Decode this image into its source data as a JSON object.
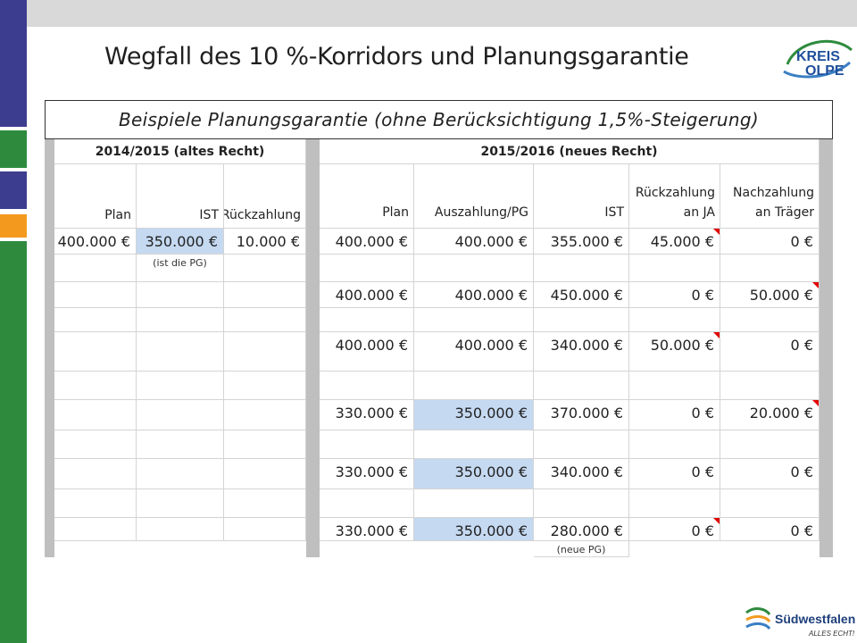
{
  "slide": {
    "title": "Wegfall des 10 %-Korridors und Planungsgarantie"
  },
  "logos": {
    "kreis_line1": "KREIS",
    "kreis_line2": "OLPE",
    "sw_name": "Südwestfalen",
    "sw_slogan": "ALLES ECHT!"
  },
  "table": {
    "caption": "Beispiele Planungsgarantie (ohne Berücksichtigung 1,5%-Steigerung)",
    "group_old": "2014/2015 (altes Recht)",
    "group_new": "2015/2016 (neues Recht)",
    "old_cols": [
      "Plan",
      "IST",
      "Rückzahlung"
    ],
    "new_cols": [
      "Plan",
      "Auszahlung/PG",
      "IST",
      "Rückzahlung\nan JA",
      "Nachzahlung\nan Träger"
    ],
    "old_row": [
      "400.000 €",
      "350.000 €",
      "10.000 €"
    ],
    "old_note": "(ist die PG)",
    "rows": [
      [
        "400.000 €",
        "400.000 €",
        "355.000 €",
        "45.000 €",
        "0 €"
      ],
      [
        "400.000 €",
        "400.000 €",
        "450.000 €",
        "0 €",
        "50.000 €"
      ],
      [
        "400.000 €",
        "400.000 €",
        "340.000 €",
        "50.000 €",
        "0 €"
      ],
      [
        "330.000 €",
        "350.000 €",
        "370.000 €",
        "0 €",
        "20.000 €"
      ],
      [
        "330.000 €",
        "350.000 €",
        "340.000 €",
        "0 €",
        "0 €"
      ],
      [
        "330.000 €",
        "350.000 €",
        "280.000 €",
        "0 €",
        "0 €"
      ]
    ],
    "final_note": "(neue PG)",
    "colors": {
      "highlight": "#c5d9f1",
      "comment_marker": "#e00000"
    }
  }
}
